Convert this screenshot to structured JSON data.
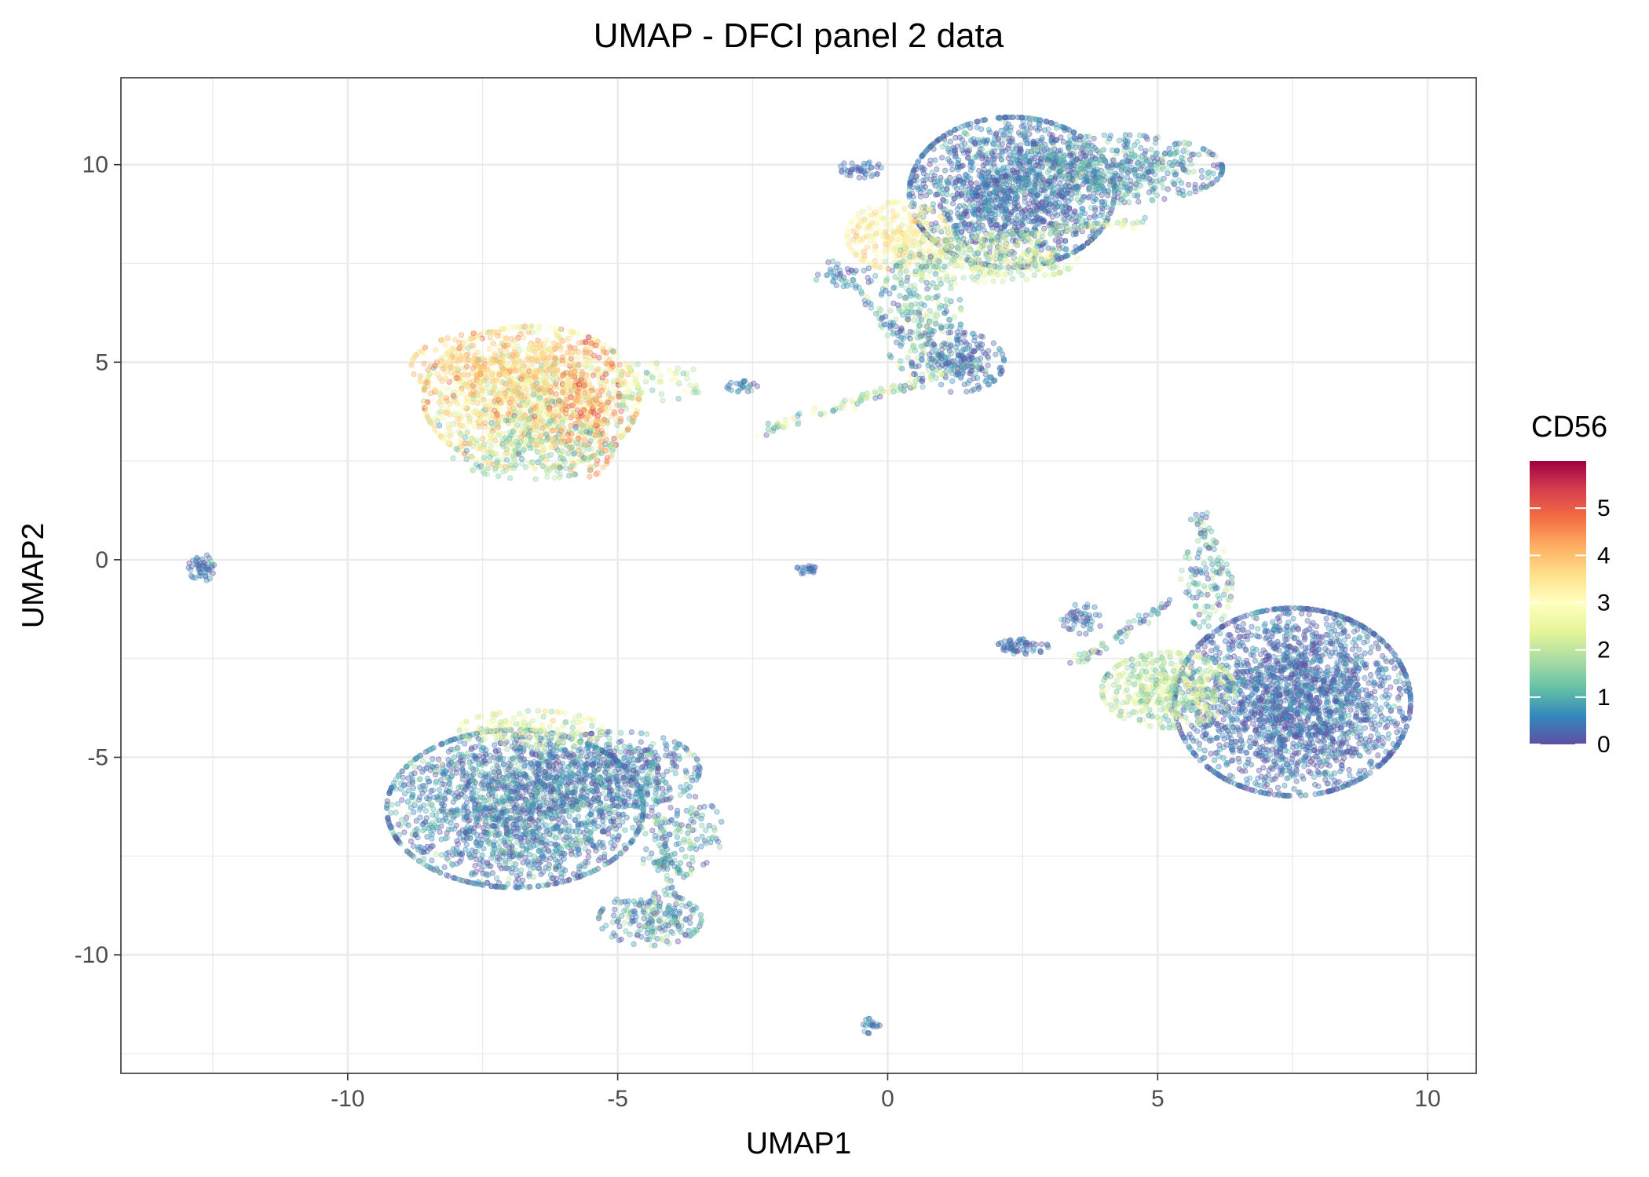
{
  "chart_data": {
    "type": "scatter",
    "title": "UMAP - DFCI panel 2 data",
    "xlabel": "UMAP1",
    "ylabel": "UMAP2",
    "xlim": [
      -14.2,
      10.9
    ],
    "ylim": [
      -13.0,
      12.2
    ],
    "xticks": [
      -10,
      -5,
      0,
      5,
      10
    ],
    "yticks": [
      -10,
      -5,
      0,
      5,
      10
    ],
    "xtick_labels": [
      "-10",
      "-5",
      "0",
      "5",
      "10"
    ],
    "ytick_labels": [
      "-10",
      "-5",
      "0",
      "5",
      "10"
    ],
    "grid": true,
    "point_opacity": 0.35,
    "color_scale": {
      "variable": "CD56",
      "palette": "Spectral (reversed)",
      "colors": [
        "#5E4FA2",
        "#3288BD",
        "#66C2A5",
        "#ABDDA4",
        "#E6F598",
        "#FFFFBF",
        "#FEE08B",
        "#FDAE61",
        "#F46D43",
        "#D53E4F",
        "#9E0142"
      ],
      "range": [
        0,
        6
      ],
      "ticks": [
        0,
        1,
        2,
        3,
        4,
        5
      ],
      "tick_labels": [
        "0",
        "1",
        "2",
        "3",
        "4",
        "5"
      ],
      "legend_position": "right"
    },
    "clusters": [
      {
        "cx": -6.6,
        "cy": 4.1,
        "sx": 1.05,
        "sy": 0.95,
        "n": 1400,
        "v_mean": 3.1,
        "v_sd": 0.9
      },
      {
        "cx": -5.6,
        "cy": 3.8,
        "sx": 0.35,
        "sy": 0.9,
        "n": 220,
        "v_mean": 4.4,
        "v_sd": 0.5
      },
      {
        "cx": -7.3,
        "cy": 4.9,
        "sx": 0.8,
        "sy": 0.45,
        "n": 250,
        "v_mean": 3.9,
        "v_sd": 0.4
      },
      {
        "cx": -6.6,
        "cy": 2.8,
        "sx": 0.8,
        "sy": 0.4,
        "n": 200,
        "v_mean": 1.6,
        "v_sd": 0.5
      },
      {
        "cx": -4.3,
        "cy": 4.5,
        "sx": 0.5,
        "sy": 0.25,
        "n": 60,
        "v_mean": 2.2,
        "v_sd": 0.6
      },
      {
        "cx": -2.7,
        "cy": 4.4,
        "sx": 0.15,
        "sy": 0.08,
        "n": 25,
        "v_mean": 0.6,
        "v_sd": 0.3
      },
      {
        "cx": 2.3,
        "cy": 9.3,
        "sx": 1.0,
        "sy": 1.0,
        "n": 1600,
        "v_mean": 0.45,
        "v_sd": 0.45
      },
      {
        "cx": 4.3,
        "cy": 9.9,
        "sx": 1.0,
        "sy": 0.45,
        "n": 500,
        "v_mean": 0.7,
        "v_sd": 0.6
      },
      {
        "cx": 0.2,
        "cy": 8.2,
        "sx": 0.5,
        "sy": 0.45,
        "n": 280,
        "v_mean": 3.2,
        "v_sd": 0.5
      },
      {
        "cx": 1.8,
        "cy": 7.6,
        "sx": 0.9,
        "sy": 0.3,
        "n": 280,
        "v_mean": 2.3,
        "v_sd": 0.6
      },
      {
        "cx": 0.6,
        "cy": 6.2,
        "sx": 0.4,
        "sy": 0.8,
        "n": 250,
        "v_mean": 1.2,
        "v_sd": 0.8
      },
      {
        "cx": 1.3,
        "cy": 5.0,
        "sx": 0.45,
        "sy": 0.4,
        "n": 200,
        "v_mean": 0.4,
        "v_sd": 0.4
      },
      {
        "cx": -0.5,
        "cy": 9.9,
        "sx": 0.2,
        "sy": 0.12,
        "n": 40,
        "v_mean": 0.3,
        "v_sd": 0.3
      },
      {
        "cx": -0.8,
        "cy": 7.2,
        "sx": 0.3,
        "sy": 0.15,
        "n": 30,
        "v_mean": 0.4,
        "v_sd": 0.4
      },
      {
        "cx": 7.5,
        "cy": -3.6,
        "sx": 1.15,
        "sy": 1.25,
        "n": 2300,
        "v_mean": 0.35,
        "v_sd": 0.4
      },
      {
        "cx": 5.2,
        "cy": -3.3,
        "sx": 0.65,
        "sy": 0.5,
        "n": 500,
        "v_mean": 2.1,
        "v_sd": 0.7
      },
      {
        "cx": 5.9,
        "cy": -0.6,
        "sx": 0.25,
        "sy": 0.6,
        "n": 100,
        "v_mean": 1.2,
        "v_sd": 0.8
      },
      {
        "cx": 2.5,
        "cy": -2.2,
        "sx": 0.25,
        "sy": 0.1,
        "n": 60,
        "v_mean": 0.3,
        "v_sd": 0.3
      },
      {
        "cx": 3.6,
        "cy": -1.5,
        "sx": 0.2,
        "sy": 0.2,
        "n": 50,
        "v_mean": 0.3,
        "v_sd": 0.3
      },
      {
        "cx": -6.9,
        "cy": -6.3,
        "sx": 1.25,
        "sy": 1.05,
        "n": 2000,
        "v_mean": 0.55,
        "v_sd": 0.55
      },
      {
        "cx": -5.0,
        "cy": -5.3,
        "sx": 0.8,
        "sy": 0.5,
        "n": 450,
        "v_mean": 0.5,
        "v_sd": 0.5
      },
      {
        "cx": -6.6,
        "cy": -4.3,
        "sx": 0.7,
        "sy": 0.25,
        "n": 160,
        "v_mean": 2.5,
        "v_sd": 0.6
      },
      {
        "cx": -4.4,
        "cy": -9.1,
        "sx": 0.5,
        "sy": 0.35,
        "n": 200,
        "v_mean": 0.7,
        "v_sd": 0.7
      },
      {
        "cx": -3.8,
        "cy": -6.9,
        "sx": 0.4,
        "sy": 0.5,
        "n": 120,
        "v_mean": 0.8,
        "v_sd": 0.7
      },
      {
        "cx": -12.7,
        "cy": -0.2,
        "sx": 0.13,
        "sy": 0.18,
        "n": 50,
        "v_mean": 0.4,
        "v_sd": 0.4
      },
      {
        "cx": -1.5,
        "cy": -0.25,
        "sx": 0.1,
        "sy": 0.06,
        "n": 25,
        "v_mean": 0.4,
        "v_sd": 0.4
      },
      {
        "cx": -0.3,
        "cy": -11.8,
        "sx": 0.1,
        "sy": 0.1,
        "n": 22,
        "v_mean": 0.6,
        "v_sd": 0.4
      }
    ],
    "streaks": [
      {
        "from": [
          -2.4,
          3.2
        ],
        "to": [
          1.7,
          5.0
        ],
        "n": 120,
        "v_mean": 1.6,
        "v_sd": 0.9
      },
      {
        "from": [
          1.7,
          8.1
        ],
        "to": [
          4.8,
          8.6
        ],
        "n": 80,
        "v_mean": 2.0,
        "v_sd": 0.7
      },
      {
        "from": [
          -1.1,
          7.5
        ],
        "to": [
          0.3,
          5.6
        ],
        "n": 40,
        "v_mean": 0.6,
        "v_sd": 0.5
      },
      {
        "from": [
          -4.4,
          -4.6
        ],
        "to": [
          -3.9,
          -9.3
        ],
        "n": 90,
        "v_mean": 0.8,
        "v_sd": 0.7
      },
      {
        "from": [
          -4.5,
          -7.6
        ],
        "to": [
          -3.7,
          -7.9
        ],
        "n": 40,
        "v_mean": 0.9,
        "v_sd": 0.6
      },
      {
        "from": [
          3.5,
          -2.6
        ],
        "to": [
          5.2,
          -1.1
        ],
        "n": 60,
        "v_mean": 1.0,
        "v_sd": 0.9
      },
      {
        "from": [
          5.7,
          1.2
        ],
        "to": [
          6.3,
          -0.6
        ],
        "n": 40,
        "v_mean": 0.8,
        "v_sd": 0.7
      }
    ]
  }
}
